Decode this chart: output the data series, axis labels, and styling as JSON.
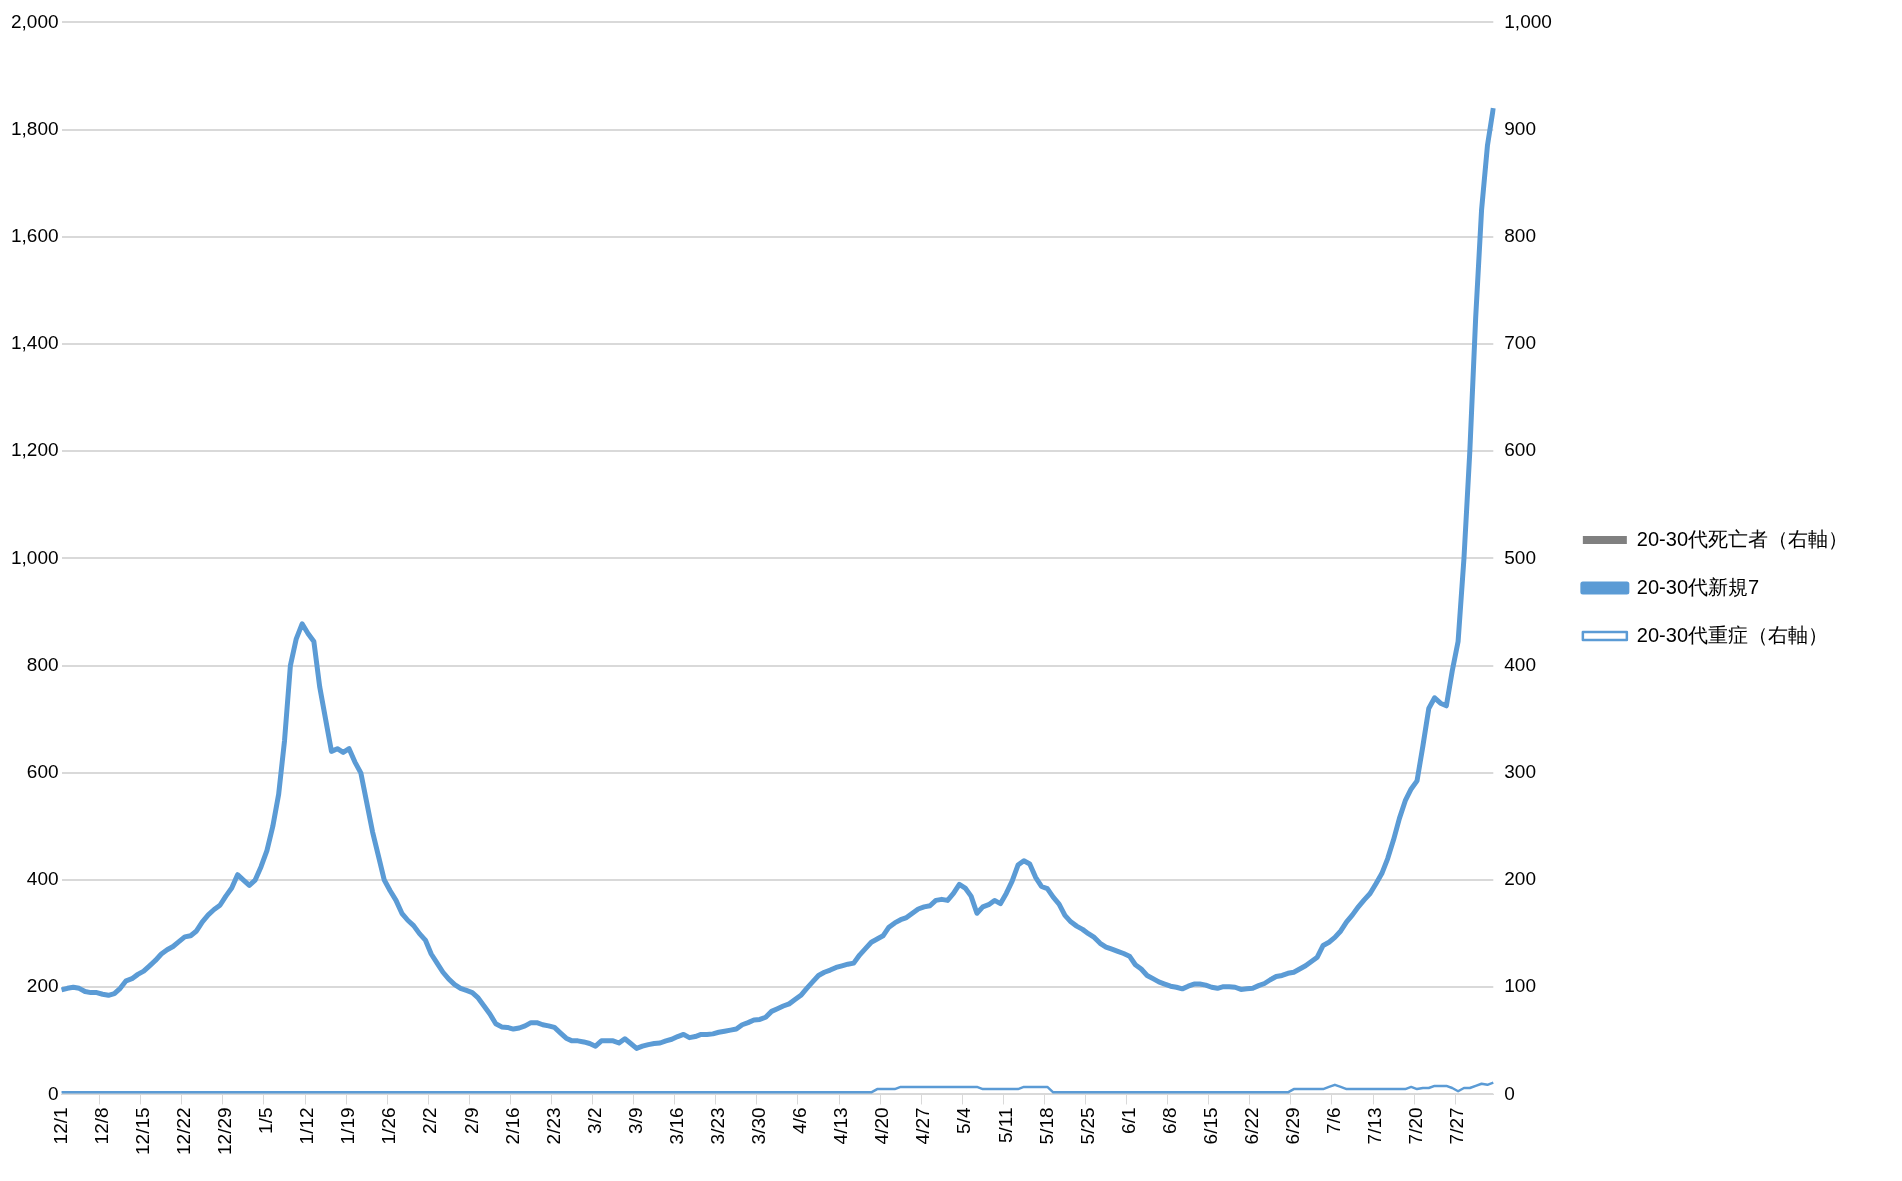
{
  "chart_data": {
    "type": "line",
    "categories": [
      "12/1",
      null,
      null,
      null,
      null,
      null,
      null,
      "12/8",
      null,
      null,
      null,
      null,
      null,
      null,
      "12/15",
      null,
      null,
      null,
      null,
      null,
      null,
      "12/22",
      null,
      null,
      null,
      null,
      null,
      null,
      "12/29",
      null,
      null,
      null,
      null,
      null,
      null,
      "1/5",
      null,
      null,
      null,
      null,
      null,
      null,
      "1/12",
      null,
      null,
      null,
      null,
      null,
      null,
      "1/19",
      null,
      null,
      null,
      null,
      null,
      null,
      "1/26",
      null,
      null,
      null,
      null,
      null,
      null,
      "2/2",
      null,
      null,
      null,
      null,
      null,
      null,
      "2/9",
      null,
      null,
      null,
      null,
      null,
      null,
      "2/16",
      null,
      null,
      null,
      null,
      null,
      null,
      "2/23",
      null,
      null,
      null,
      null,
      null,
      null,
      "3/2",
      null,
      null,
      null,
      null,
      null,
      null,
      "3/9",
      null,
      null,
      null,
      null,
      null,
      null,
      "3/16",
      null,
      null,
      null,
      null,
      null,
      null,
      "3/23",
      null,
      null,
      null,
      null,
      null,
      null,
      "3/30",
      null,
      null,
      null,
      null,
      null,
      null,
      "4/6",
      null,
      null,
      null,
      null,
      null,
      null,
      "4/13",
      null,
      null,
      null,
      null,
      null,
      null,
      "4/20",
      null,
      null,
      null,
      null,
      null,
      null,
      "4/27",
      null,
      null,
      null,
      null,
      null,
      null,
      "5/4",
      null,
      null,
      null,
      null,
      null,
      null,
      "5/11",
      null,
      null,
      null,
      null,
      null,
      null,
      "5/18",
      null,
      null,
      null,
      null,
      null,
      null,
      "5/25",
      null,
      null,
      null,
      null,
      null,
      null,
      "6/1",
      null,
      null,
      null,
      null,
      null,
      null,
      "6/8",
      null,
      null,
      null,
      null,
      null,
      null,
      "6/15",
      null,
      null,
      null,
      null,
      null,
      null,
      "6/22",
      null,
      null,
      null,
      null,
      null,
      null,
      "6/29",
      null,
      null,
      null,
      null,
      null,
      null,
      "7/6",
      null,
      null,
      null,
      null,
      null,
      null,
      "7/13",
      null,
      null,
      null,
      null,
      null,
      null,
      "7/20",
      null,
      null,
      null,
      null,
      null,
      null,
      "7/27",
      null,
      null,
      null,
      null,
      null,
      null
    ],
    "series": [
      {
        "name": "20-30代死亡者（右軸）",
        "type": "bar",
        "axis": "y2",
        "color": "#808080",
        "values": [
          0,
          0,
          0,
          0,
          0,
          0,
          0,
          0,
          0,
          0,
          0,
          0,
          0,
          0,
          0,
          0,
          0,
          0,
          0,
          0,
          0,
          0,
          0,
          0,
          0,
          0,
          0,
          0,
          0,
          0,
          0,
          0,
          0,
          0,
          0,
          0,
          0,
          0,
          0,
          0,
          0,
          0,
          0,
          0,
          0,
          0,
          0,
          0,
          0,
          0,
          0,
          0,
          0,
          0,
          0,
          0,
          0,
          0,
          0,
          0,
          0,
          0,
          0,
          0,
          0,
          0,
          0,
          0,
          0,
          0,
          0,
          0,
          0,
          0,
          0,
          0,
          0,
          0,
          0,
          0,
          0,
          0,
          0,
          0,
          0,
          0,
          0,
          0,
          0,
          0,
          0,
          0,
          0,
          0,
          0,
          0,
          0,
          0,
          0,
          0,
          0,
          0,
          0,
          0,
          0,
          0,
          0,
          0,
          0,
          0,
          0,
          0,
          0,
          0,
          0,
          0,
          0,
          0,
          0,
          0,
          0,
          0,
          0,
          0,
          0,
          0,
          0,
          0,
          0,
          0,
          0,
          0,
          0,
          0,
          0,
          0,
          0,
          0,
          0,
          0,
          0,
          0,
          0,
          0,
          0,
          0,
          0,
          0,
          0,
          0,
          0,
          0,
          0,
          0,
          0,
          0,
          0,
          0,
          0,
          0,
          0,
          0,
          0,
          0,
          0,
          0,
          0,
          0,
          0,
          0,
          0,
          0,
          0,
          0,
          0,
          0,
          0,
          0,
          0,
          0,
          0,
          0,
          0,
          0,
          0,
          0,
          0,
          0,
          0,
          0,
          0,
          0,
          0,
          0,
          0,
          0,
          0,
          0,
          0,
          0,
          0,
          0,
          0,
          0,
          0,
          0,
          0,
          0,
          0,
          0,
          0,
          0,
          0,
          0,
          0,
          0,
          0,
          0,
          0,
          0,
          0,
          0,
          0,
          0,
          0,
          0,
          0,
          0,
          0,
          0,
          0,
          0,
          0,
          0,
          0,
          0,
          0,
          0,
          0,
          0,
          0,
          0,
          0,
          0,
          0
        ]
      },
      {
        "name": "20-30代新規7",
        "color": "#5b9bd5",
        "values": [
          195,
          198,
          200,
          198,
          192,
          190,
          190,
          187,
          185,
          188,
          198,
          212,
          216,
          224,
          230,
          240,
          250,
          262,
          270,
          276,
          285,
          294,
          296,
          305,
          322,
          335,
          345,
          353,
          370,
          385,
          410,
          400,
          390,
          400,
          425,
          455,
          500,
          560,
          660,
          800,
          850,
          878,
          860,
          845,
          760,
          700,
          640,
          645,
          638,
          645,
          620,
          600,
          545,
          490,
          445,
          400,
          380,
          362,
          338,
          325,
          315,
          300,
          288,
          262,
          245,
          228,
          215,
          205,
          198,
          194,
          190,
          180,
          165,
          150,
          132,
          126,
          125,
          122,
          124,
          128,
          134,
          134,
          130,
          128,
          125,
          115,
          105,
          100,
          100,
          98,
          95,
          90,
          100,
          100,
          100,
          96,
          104,
          95,
          86,
          90,
          93,
          95,
          96,
          100,
          103,
          108,
          112,
          106,
          108,
          112,
          112,
          113,
          116,
          118,
          120,
          122,
          130,
          134,
          139,
          140,
          144,
          155,
          160,
          165,
          169,
          177,
          185,
          198,
          210,
          222,
          228,
          232,
          237,
          240,
          243,
          245,
          260,
          272,
          284,
          290,
          296,
          312,
          320,
          326,
          330,
          338,
          346,
          350,
          352,
          362,
          364,
          362,
          375,
          392,
          385,
          370,
          338,
          350,
          354,
          362,
          356,
          375,
          398,
          428,
          436,
          430,
          405,
          388,
          384,
          368,
          355,
          334,
          322,
          314,
          308,
          300,
          293,
          282,
          275,
          271,
          267,
          263,
          258,
          242,
          234,
          222,
          216,
          210,
          206,
          202,
          200,
          197,
          202,
          206,
          206,
          204,
          200,
          198,
          201,
          201,
          200,
          196,
          197,
          198,
          203,
          207,
          214,
          220,
          222,
          226,
          228,
          234,
          240,
          248,
          256,
          278,
          284,
          293,
          305,
          322,
          335,
          350,
          363,
          375,
          393,
          412,
          440,
          475,
          515,
          548,
          570,
          585,
          650,
          720,
          740,
          730,
          725,
          790,
          845,
          1000,
          1200,
          1450,
          1650,
          1770,
          1840
        ]
      },
      {
        "name": "20-30代重症（右軸）",
        "axis": "y2",
        "color": "#5b9bd5",
        "values": [
          2,
          2,
          2,
          2,
          2,
          2,
          2,
          2,
          2,
          2,
          2,
          2,
          2,
          2,
          2,
          2,
          2,
          2,
          2,
          2,
          2,
          2,
          2,
          2,
          2,
          2,
          2,
          2,
          2,
          2,
          2,
          2,
          2,
          2,
          2,
          2,
          2,
          2,
          2,
          2,
          2,
          2,
          2,
          2,
          2,
          2,
          2,
          2,
          2,
          2,
          2,
          2,
          2,
          2,
          2,
          2,
          2,
          2,
          2,
          2,
          2,
          2,
          2,
          2,
          2,
          2,
          2,
          2,
          2,
          2,
          2,
          2,
          2,
          2,
          2,
          2,
          2,
          2,
          2,
          2,
          2,
          2,
          2,
          2,
          2,
          2,
          2,
          2,
          2,
          2,
          2,
          2,
          2,
          2,
          2,
          2,
          2,
          2,
          2,
          2,
          2,
          2,
          2,
          2,
          2,
          2,
          2,
          2,
          2,
          2,
          2,
          2,
          2,
          2,
          2,
          2,
          2,
          2,
          2,
          2,
          2,
          2,
          2,
          2,
          2,
          2,
          2,
          2,
          2,
          2,
          2,
          2,
          2,
          2,
          2,
          2,
          2,
          2,
          2,
          5,
          5,
          5,
          5,
          7,
          7,
          7,
          7,
          7,
          7,
          7,
          7,
          7,
          7,
          7,
          7,
          7,
          7,
          5,
          5,
          5,
          5,
          5,
          5,
          5,
          7,
          7,
          7,
          7,
          7,
          2,
          2,
          2,
          2,
          2,
          2,
          2,
          2,
          2,
          2,
          2,
          2,
          2,
          2,
          2,
          2,
          2,
          2,
          2,
          2,
          2,
          2,
          2,
          2,
          2,
          2,
          2,
          2,
          2,
          2,
          2,
          2,
          2,
          2,
          2,
          2,
          2,
          2,
          2,
          2,
          2,
          5,
          5,
          5,
          5,
          5,
          5,
          7,
          9,
          7,
          5,
          5,
          5,
          5,
          5,
          5,
          5,
          5,
          5,
          5,
          5,
          7,
          5,
          6,
          6,
          8,
          8,
          8,
          6,
          3,
          6,
          6,
          8,
          10,
          9,
          11
        ]
      }
    ],
    "ylim": [
      0,
      2000
    ],
    "yticks": [
      0,
      200,
      400,
      600,
      800,
      {
        "value": 1000,
        "label": "1,000"
      },
      {
        "value": 1200,
        "label": "1,200"
      },
      {
        "value": 1400,
        "label": "1,400"
      },
      {
        "value": 1600,
        "label": "1,600"
      },
      {
        "value": 1800,
        "label": "1,800"
      },
      {
        "value": 2000,
        "label": "2,000"
      }
    ],
    "y2lim": [
      0,
      1000
    ],
    "y2ticks": [
      0,
      100,
      200,
      300,
      400,
      500,
      600,
      700,
      800,
      900,
      {
        "value": 1000,
        "label": "1,000"
      }
    ],
    "grid": "y",
    "legend": "right",
    "marker": "none",
    "line_style": "solid"
  }
}
